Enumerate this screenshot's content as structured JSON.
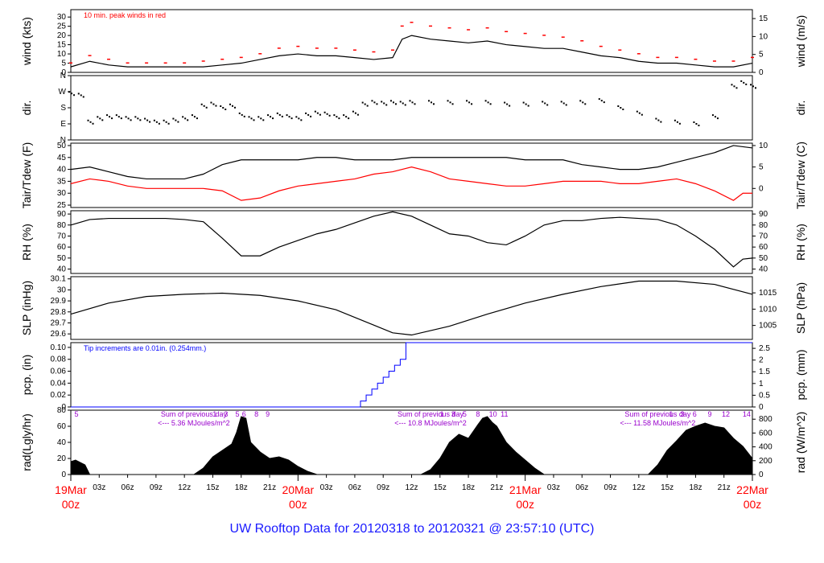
{
  "title": "UW Rooftop Data for 20120318  to  20120321 @ 23:57:10  (UTC)",
  "colors": {
    "main": "#000000",
    "dew": "#ff0000",
    "peak": "#ff0000",
    "precip": "#0000ff",
    "solar_note": "#9900cc",
    "date_label": "#ff0000",
    "title": "#1a1aff"
  },
  "chart_data": [
    {
      "panel": "wind",
      "type": "line",
      "left_label": "wind (kts)",
      "right_label": "wind (m/s)",
      "annotation": "10 min. peak winds in red",
      "ylim": [
        0,
        34
      ],
      "left_ticks": [
        0,
        5,
        10,
        15,
        20,
        25,
        30
      ],
      "right_ticks": [
        {
          "label": "0",
          "v": 0
        },
        {
          "label": "5",
          "v": 9.72
        },
        {
          "label": "10",
          "v": 19.44
        },
        {
          "label": "15",
          "v": 29.16
        }
      ],
      "series": [
        {
          "style": "main",
          "x": [
            0,
            2,
            4,
            6,
            8,
            10,
            12,
            14,
            16,
            18,
            20,
            22,
            24,
            26,
            28,
            30,
            32,
            34,
            35,
            36,
            38,
            40,
            42,
            44,
            46,
            48,
            50,
            52,
            54,
            56,
            58,
            60,
            62,
            64,
            66,
            68,
            70,
            72
          ],
          "values": [
            3,
            6,
            4,
            3,
            3,
            3,
            3,
            3,
            4,
            5,
            7,
            9,
            10,
            9,
            9,
            8,
            7,
            8,
            18,
            20,
            18,
            17,
            16,
            17,
            15,
            14,
            13,
            13,
            11,
            9,
            8,
            6,
            5,
            5,
            4,
            3,
            3,
            5
          ]
        },
        {
          "style": "peak",
          "x": [
            0,
            2,
            4,
            6,
            8,
            10,
            12,
            14,
            16,
            18,
            20,
            22,
            24,
            26,
            28,
            30,
            32,
            34,
            35,
            36,
            38,
            40,
            42,
            44,
            46,
            48,
            50,
            52,
            54,
            56,
            58,
            60,
            62,
            64,
            66,
            68,
            70,
            72
          ],
          "values": [
            5,
            9,
            7,
            5,
            5,
            5,
            5,
            6,
            7,
            8,
            10,
            13,
            14,
            13,
            13,
            12,
            11,
            12,
            25,
            27,
            25,
            24,
            23,
            24,
            22,
            21,
            20,
            19,
            17,
            14,
            12,
            10,
            8,
            8,
            7,
            6,
            6,
            8
          ]
        }
      ]
    },
    {
      "panel": "direction",
      "type": "scatter",
      "left_label": "dir.",
      "right_label": "dir.",
      "ylim": [
        0,
        360
      ],
      "left_ticks": [
        {
          "label": "N",
          "v": 0
        },
        {
          "label": "E",
          "v": 90
        },
        {
          "label": "S",
          "v": 180
        },
        {
          "label": "W",
          "v": 270
        },
        {
          "label": "N",
          "v": 360
        }
      ],
      "x": [
        0,
        1,
        2,
        3,
        4,
        5,
        6,
        7,
        8,
        9,
        10,
        11,
        12,
        13,
        14,
        15,
        16,
        17,
        18,
        19,
        20,
        21,
        22,
        23,
        24,
        25,
        26,
        27,
        28,
        29,
        30,
        31,
        32,
        33,
        34,
        35,
        36,
        38,
        40,
        42,
        44,
        46,
        48,
        50,
        52,
        54,
        56,
        58,
        60,
        62,
        64,
        66,
        68,
        70,
        71,
        72
      ],
      "values": [
        260,
        250,
        100,
        120,
        130,
        130,
        120,
        120,
        110,
        100,
        100,
        110,
        120,
        130,
        190,
        200,
        180,
        190,
        140,
        120,
        120,
        130,
        140,
        130,
        120,
        140,
        150,
        145,
        130,
        130,
        150,
        200,
        210,
        205,
        210,
        205,
        210,
        210,
        210,
        210,
        210,
        200,
        200,
        205,
        205,
        210,
        220,
        180,
        150,
        110,
        100,
        90,
        130,
        300,
        320,
        300
      ]
    },
    {
      "panel": "temperature",
      "type": "line",
      "left_label": "Tair/Tdew (F)",
      "right_label": "Tair/Tdew (C)",
      "ylim": [
        24,
        51
      ],
      "left_ticks": [
        25,
        30,
        35,
        40,
        45,
        50
      ],
      "right_ticks": [
        {
          "label": "0",
          "v": 32
        },
        {
          "label": "5",
          "v": 41
        },
        {
          "label": "10",
          "v": 50
        }
      ],
      "series": [
        {
          "name": "Tair",
          "style": "main",
          "x": [
            0,
            2,
            4,
            6,
            8,
            10,
            12,
            14,
            16,
            18,
            20,
            22,
            24,
            26,
            28,
            30,
            32,
            34,
            36,
            38,
            40,
            42,
            44,
            46,
            48,
            50,
            52,
            54,
            56,
            58,
            60,
            62,
            64,
            66,
            68,
            70,
            72
          ],
          "values": [
            40,
            41,
            39,
            37,
            36,
            36,
            36,
            38,
            42,
            44,
            44,
            44,
            44,
            45,
            45,
            44,
            44,
            44,
            45,
            45,
            45,
            45,
            45,
            45,
            44,
            44,
            44,
            42,
            41,
            40,
            40,
            41,
            43,
            45,
            47,
            50,
            49
          ]
        },
        {
          "name": "Tdew",
          "style": "dew",
          "x": [
            0,
            2,
            4,
            6,
            8,
            10,
            12,
            14,
            16,
            18,
            20,
            22,
            24,
            26,
            28,
            30,
            32,
            34,
            36,
            38,
            40,
            42,
            44,
            46,
            48,
            50,
            52,
            54,
            56,
            58,
            60,
            62,
            64,
            66,
            68,
            70,
            71,
            72
          ],
          "values": [
            34,
            36,
            35,
            33,
            32,
            32,
            32,
            32,
            31,
            27,
            28,
            31,
            33,
            34,
            35,
            36,
            38,
            39,
            41,
            39,
            36,
            35,
            34,
            33,
            33,
            34,
            35,
            35,
            35,
            34,
            34,
            35,
            36,
            34,
            31,
            27,
            30,
            30
          ]
        }
      ]
    },
    {
      "panel": "rh",
      "type": "line",
      "left_label": "RH (%)",
      "right_label": "RH (%)",
      "ylim": [
        36,
        93
      ],
      "left_ticks": [
        40,
        50,
        60,
        70,
        80,
        90
      ],
      "right_ticks": [
        {
          "label": "40",
          "v": 40
        },
        {
          "label": "50",
          "v": 50
        },
        {
          "label": "60",
          "v": 60
        },
        {
          "label": "70",
          "v": 70
        },
        {
          "label": "80",
          "v": 80
        },
        {
          "label": "90",
          "v": 90
        }
      ],
      "series": [
        {
          "style": "main",
          "x": [
            0,
            2,
            4,
            6,
            8,
            10,
            12,
            14,
            16,
            18,
            20,
            22,
            24,
            26,
            28,
            30,
            32,
            34,
            36,
            38,
            40,
            42,
            44,
            46,
            48,
            50,
            52,
            54,
            56,
            58,
            60,
            62,
            64,
            66,
            68,
            70,
            71,
            72
          ],
          "values": [
            80,
            85,
            86,
            86,
            86,
            86,
            85,
            83,
            68,
            52,
            52,
            60,
            66,
            72,
            76,
            82,
            88,
            92,
            88,
            80,
            72,
            70,
            64,
            62,
            70,
            80,
            84,
            84,
            86,
            87,
            86,
            85,
            80,
            70,
            58,
            42,
            49,
            50
          ]
        }
      ]
    },
    {
      "panel": "pressure",
      "type": "line",
      "left_label": "SLP (inHg)",
      "right_label": "SLP (hPa)",
      "ylim": [
        29.55,
        30.12
      ],
      "left_ticks": [
        29.6,
        29.7,
        29.8,
        29.9,
        30.0,
        30.1
      ],
      "right_ticks": [
        {
          "label": "1005",
          "v": 29.677
        },
        {
          "label": "1010",
          "v": 29.825
        },
        {
          "label": "1015",
          "v": 29.973
        }
      ],
      "series": [
        {
          "style": "main",
          "x": [
            0,
            4,
            8,
            12,
            16,
            20,
            24,
            28,
            32,
            34,
            36,
            40,
            44,
            48,
            52,
            56,
            60,
            64,
            68,
            72
          ],
          "values": [
            29.78,
            29.88,
            29.94,
            29.96,
            29.97,
            29.95,
            29.9,
            29.82,
            29.68,
            29.61,
            29.59,
            29.67,
            29.78,
            29.88,
            29.96,
            30.03,
            30.08,
            30.08,
            30.05,
            29.96
          ]
        }
      ]
    },
    {
      "panel": "precip",
      "type": "line",
      "left_label": "pcp. (in)",
      "right_label": "pcp. (mm)",
      "annotation": "Tip increments are 0.01in. (0.254mm.)",
      "ylim": [
        0,
        0.108
      ],
      "left_ticks": [
        0,
        0.02,
        0.04,
        0.06,
        0.08,
        0.1
      ],
      "left_tick_labels": [
        "0",
        "0.02",
        "0.04",
        "0.06",
        "0.08",
        "0.10"
      ],
      "right_ticks": [
        {
          "label": "0",
          "v": 0
        },
        {
          "label": "0.5",
          "v": 0.0197
        },
        {
          "label": "1",
          "v": 0.0394
        },
        {
          "label": "1.5",
          "v": 0.0591
        },
        {
          "label": "2",
          "v": 0.0787
        },
        {
          "label": "2.5",
          "v": 0.0984
        }
      ],
      "series": [
        {
          "style": "precip",
          "x": [
            0,
            30.0,
            30.6,
            31.2,
            31.8,
            32.4,
            33.0,
            33.6,
            34.2,
            34.8,
            35.4,
            72
          ],
          "values": [
            0,
            0,
            0.01,
            0.02,
            0.03,
            0.04,
            0.05,
            0.06,
            0.07,
            0.08,
            0.11,
            0.11
          ]
        }
      ]
    },
    {
      "panel": "radiation",
      "type": "area",
      "left_label": "rad(Lgly/hr)",
      "right_label": "rad (W/m^2)",
      "ylim": [
        0,
        80
      ],
      "left_ticks": [
        0,
        20,
        40,
        60,
        80
      ],
      "right_ticks": [
        {
          "label": "0",
          "v": 0
        },
        {
          "label": "200",
          "v": 17.2
        },
        {
          "label": "400",
          "v": 34.4
        },
        {
          "label": "600",
          "v": 51.6
        },
        {
          "label": "800",
          "v": 68.8
        }
      ],
      "series": [
        {
          "style": "main",
          "x": [
            0,
            0.5,
            1.5,
            2.0,
            13,
            14,
            15,
            16,
            17,
            17.5,
            18,
            18.5,
            19,
            20,
            21,
            22,
            23,
            24,
            25,
            26
          ],
          "values": [
            16,
            18,
            12,
            0,
            0,
            8,
            22,
            30,
            38,
            52,
            72,
            70,
            40,
            28,
            20,
            22,
            18,
            10,
            4,
            0
          ]
        },
        {
          "style": "main",
          "x": [
            37,
            38,
            39,
            40,
            41,
            42,
            43,
            43.5,
            44,
            44.5,
            45,
            46,
            47,
            48,
            49,
            50
          ],
          "values": [
            0,
            6,
            20,
            40,
            50,
            45,
            62,
            70,
            72,
            65,
            60,
            40,
            28,
            18,
            8,
            0
          ]
        },
        {
          "style": "main",
          "x": [
            61,
            62,
            63,
            64,
            65,
            66,
            67,
            68,
            69,
            70,
            71,
            72
          ],
          "values": [
            0,
            12,
            30,
            42,
            55,
            60,
            64,
            60,
            58,
            45,
            35,
            20
          ]
        }
      ],
      "daily_sums": [
        {
          "text": "Sum of previous day",
          "sub": "<--- 5.36 MJoules/m^2",
          "x": 13
        },
        {
          "text": "Sum of previous day",
          "sub": "<--- 10.8 MJoules/m^2",
          "x": 38
        },
        {
          "text": "Sum of previous day",
          "sub": "<--- 11.58 MJoules/m^2",
          "x": 62
        }
      ],
      "hour_marks": [
        {
          "label": "5",
          "x": 0.6
        },
        {
          "label": "1",
          "x": 15.2
        },
        {
          "label": "3",
          "x": 16.4
        },
        {
          "label": "5",
          "x": 17.6
        },
        {
          "label": "6",
          "x": 18.3
        },
        {
          "label": "8",
          "x": 19.6
        },
        {
          "label": "9",
          "x": 20.8
        },
        {
          "label": "1",
          "x": 39.2
        },
        {
          "label": "3",
          "x": 40.4
        },
        {
          "label": "5",
          "x": 41.6
        },
        {
          "label": "8",
          "x": 43.0
        },
        {
          "label": "10",
          "x": 44.6
        },
        {
          "label": "11",
          "x": 45.8
        },
        {
          "label": "1",
          "x": 63.4
        },
        {
          "label": "3",
          "x": 64.6
        },
        {
          "label": "6",
          "x": 65.9
        },
        {
          "label": "9",
          "x": 67.5
        },
        {
          "label": "12",
          "x": 69.2
        },
        {
          "label": "14",
          "x": 71.4
        }
      ]
    }
  ],
  "x_axis": {
    "range": [
      0,
      72
    ],
    "hour_labels": [
      {
        "label": "03z",
        "x": 3
      },
      {
        "label": "06z",
        "x": 6
      },
      {
        "label": "09z",
        "x": 9
      },
      {
        "label": "12z",
        "x": 12
      },
      {
        "label": "15z",
        "x": 15
      },
      {
        "label": "18z",
        "x": 18
      },
      {
        "label": "21z",
        "x": 21
      },
      {
        "label": "03z",
        "x": 27
      },
      {
        "label": "06z",
        "x": 30
      },
      {
        "label": "09z",
        "x": 33
      },
      {
        "label": "12z",
        "x": 36
      },
      {
        "label": "15z",
        "x": 39
      },
      {
        "label": "18z",
        "x": 42
      },
      {
        "label": "21z",
        "x": 45
      },
      {
        "label": "03z",
        "x": 51
      },
      {
        "label": "06z",
        "x": 54
      },
      {
        "label": "09z",
        "x": 57
      },
      {
        "label": "12z",
        "x": 60
      },
      {
        "label": "15z",
        "x": 63
      },
      {
        "label": "18z",
        "x": 66
      },
      {
        "label": "21z",
        "x": 69
      }
    ],
    "day_labels": [
      {
        "date": "19Mar",
        "hour": "00z",
        "x": 0
      },
      {
        "date": "20Mar",
        "hour": "00z",
        "x": 24
      },
      {
        "date": "21Mar",
        "hour": "00z",
        "x": 48
      },
      {
        "date": "22Mar",
        "hour": "00z",
        "x": 72
      }
    ]
  }
}
